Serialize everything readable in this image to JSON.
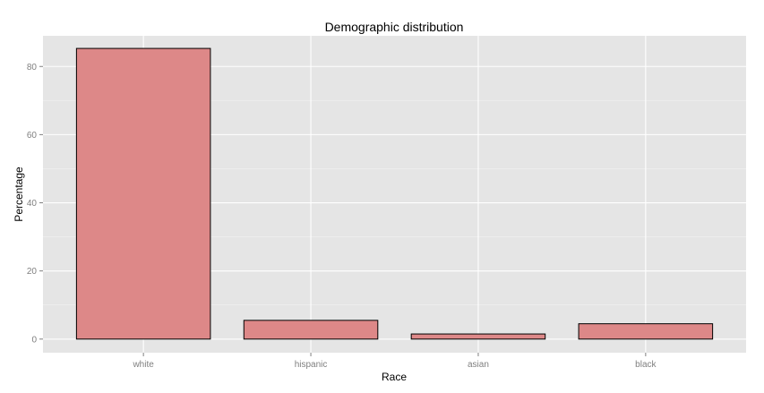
{
  "chart_data": {
    "type": "bar",
    "title": "Demographic distribution",
    "xlabel": "Race",
    "ylabel": "Percentage",
    "categories": [
      "white",
      "hispanic",
      "asian",
      "black"
    ],
    "values": [
      85.3,
      5.5,
      1.5,
      4.5
    ],
    "ylim": [
      -4,
      89
    ],
    "yticks": [
      "0",
      "20",
      "40",
      "60",
      "80"
    ],
    "grid": true,
    "legend": "none",
    "colors": {
      "bar_fill": "#dd8888",
      "bar_stroke": "#000000",
      "panel": "#e5e5e5",
      "grid_major": "#ffffff",
      "grid_minor": "#f2f2f2",
      "tick_text": "#7f7f7f",
      "tick_mark": "#7f7f7f"
    }
  }
}
